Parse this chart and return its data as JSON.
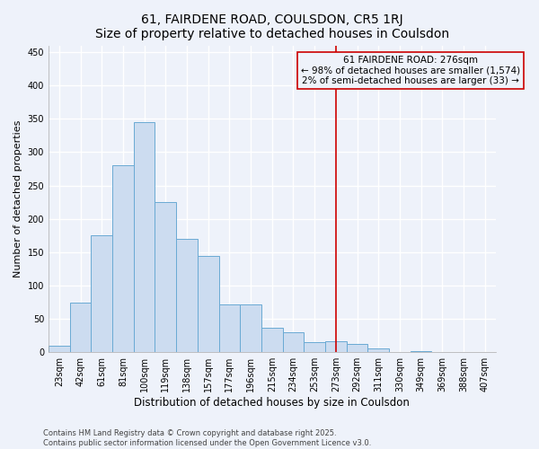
{
  "title": "61, FAIRDENE ROAD, COULSDON, CR5 1RJ",
  "subtitle": "Size of property relative to detached houses in Coulsdon",
  "xlabel": "Distribution of detached houses by size in Coulsdon",
  "ylabel": "Number of detached properties",
  "categories": [
    "23sqm",
    "42sqm",
    "61sqm",
    "81sqm",
    "100sqm",
    "119sqm",
    "138sqm",
    "157sqm",
    "177sqm",
    "196sqm",
    "215sqm",
    "234sqm",
    "253sqm",
    "273sqm",
    "292sqm",
    "311sqm",
    "330sqm",
    "349sqm",
    "369sqm",
    "388sqm",
    "407sqm"
  ],
  "values": [
    10,
    75,
    175,
    280,
    345,
    225,
    170,
    145,
    72,
    72,
    37,
    30,
    15,
    17,
    13,
    6,
    0,
    2,
    0,
    0,
    0
  ],
  "bar_color": "#ccdcf0",
  "bar_edge_color": "#6aaad4",
  "background_color": "#eef2fa",
  "grid_color": "#ffffff",
  "vline_x_index": 13,
  "vline_color": "#cc0000",
  "annotation_text": "61 FAIRDENE ROAD: 276sqm\n← 98% of detached houses are smaller (1,574)\n2% of semi-detached houses are larger (33) →",
  "annotation_box_color": "#cc0000",
  "ylim": [
    0,
    460
  ],
  "yticks": [
    0,
    50,
    100,
    150,
    200,
    250,
    300,
    350,
    400,
    450
  ],
  "footer": "Contains HM Land Registry data © Crown copyright and database right 2025.\nContains public sector information licensed under the Open Government Licence v3.0.",
  "title_fontsize": 10,
  "subtitle_fontsize": 9,
  "xlabel_fontsize": 8.5,
  "ylabel_fontsize": 8,
  "tick_fontsize": 7,
  "footer_fontsize": 6,
  "annotation_fontsize": 7.5
}
